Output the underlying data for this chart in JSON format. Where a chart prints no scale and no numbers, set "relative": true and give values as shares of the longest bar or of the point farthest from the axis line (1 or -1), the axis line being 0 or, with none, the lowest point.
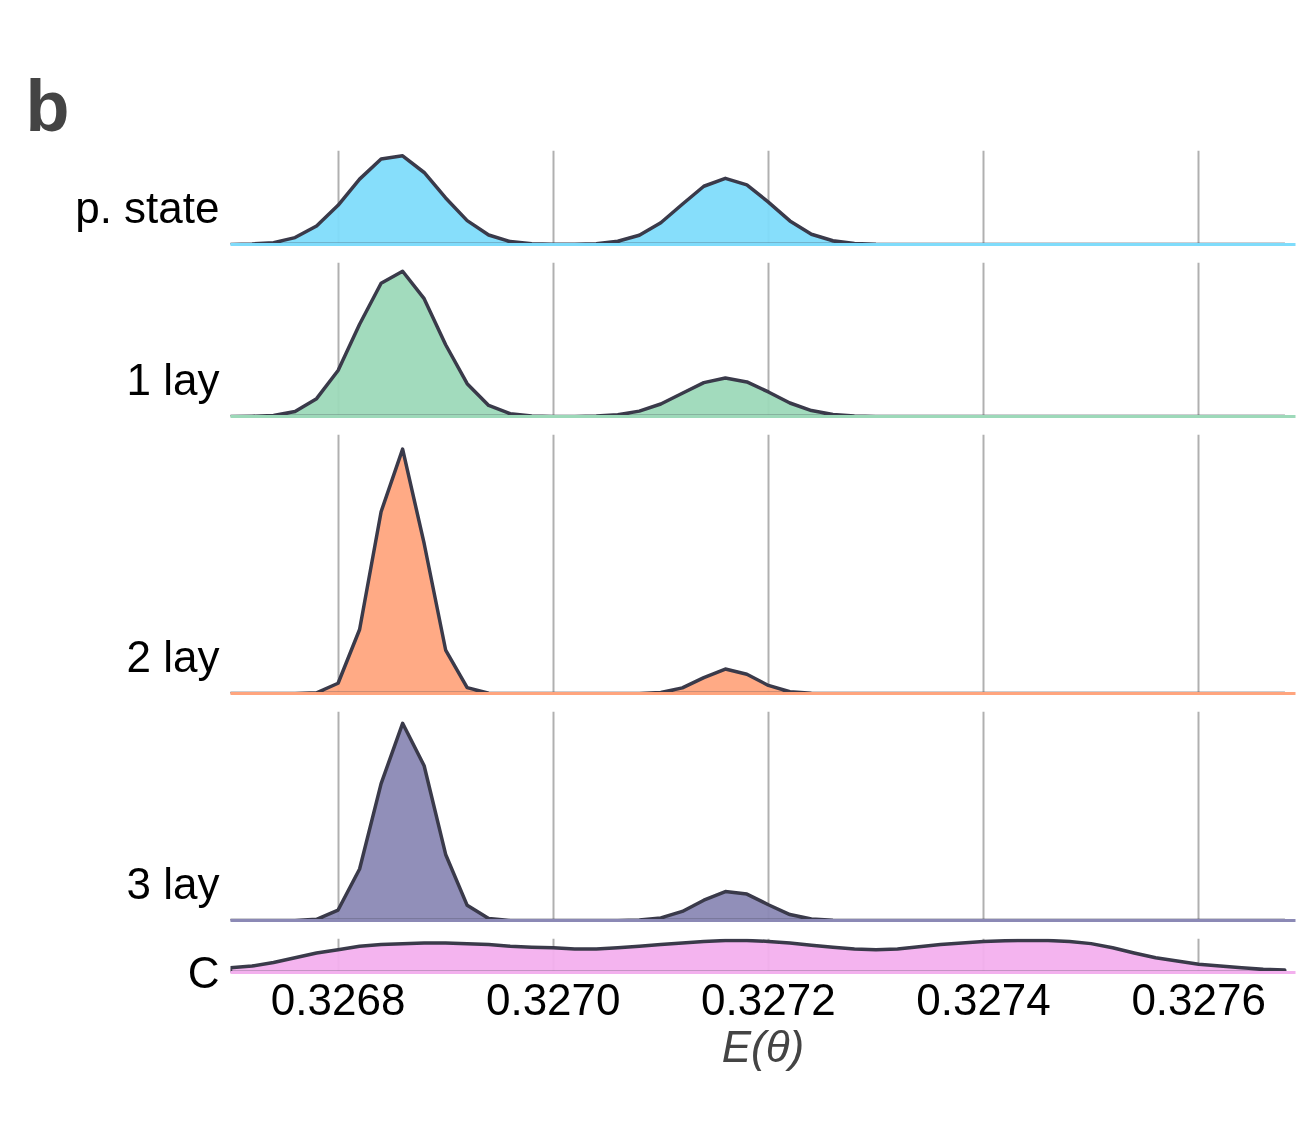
{
  "chart_data": [
    {
      "type": "area",
      "relative": true,
      "annotations": [
        "b"
      ],
      "grid": "x",
      "tick_labels": false,
      "xlim": [
        0.3267,
        0.32769
      ],
      "x": [
        0.3267,
        0.32672,
        0.32674,
        0.32676,
        0.32678,
        0.3268,
        0.32682,
        0.32684,
        0.32686,
        0.32688,
        0.3269,
        0.32692,
        0.32694,
        0.32696,
        0.32698,
        0.327,
        0.32702,
        0.32704,
        0.32706,
        0.32708,
        0.3271,
        0.32712,
        0.32714,
        0.32716,
        0.32718,
        0.3272,
        0.32722,
        0.32724,
        0.32726,
        0.32728,
        0.3273,
        0.32732,
        0.32734,
        0.32736,
        0.32738,
        0.3274,
        0.32742,
        0.32744,
        0.32746,
        0.32748,
        0.3275,
        0.32752,
        0.32754,
        0.32756,
        0.32758,
        0.3276,
        0.32762,
        0.32764,
        0.32766,
        0.32768
      ],
      "series": [
        {
          "name": "p. state",
          "color": "#7fdcfb",
          "values": [
            0,
            0.006,
            0.021,
            0.078,
            0.209,
            0.442,
            0.737,
            0.964,
            1,
            0.812,
            0.525,
            0.269,
            0.107,
            0.033,
            0.009,
            0.003,
            0.003,
            0.009,
            0.036,
            0.104,
            0.245,
            0.454,
            0.657,
            0.746,
            0.672,
            0.478,
            0.266,
            0.116,
            0.042,
            0.012,
            0.003,
            0,
            0,
            0,
            0,
            0,
            0,
            0,
            0,
            0,
            0,
            0,
            0,
            0,
            0,
            0,
            0,
            0,
            0,
            0
          ]
        }
      ]
    },
    {
      "type": "area",
      "relative": true,
      "grid": "x",
      "tick_labels": false,
      "xlim": [
        0.3267,
        0.32769
      ],
      "x": [
        0.3267,
        0.32672,
        0.32674,
        0.32676,
        0.32678,
        0.3268,
        0.32682,
        0.32684,
        0.32686,
        0.32688,
        0.3269,
        0.32692,
        0.32694,
        0.32696,
        0.32698,
        0.327,
        0.32702,
        0.32704,
        0.32706,
        0.32708,
        0.3271,
        0.32712,
        0.32714,
        0.32716,
        0.32718,
        0.3272,
        0.32722,
        0.32724,
        0.32726,
        0.32728,
        0.3273,
        0.32732,
        0.32734,
        0.32736,
        0.32738,
        0.3274,
        0.32742,
        0.32744,
        0.32746,
        0.32748,
        0.3275,
        0.32752,
        0.32754,
        0.32756,
        0.32758,
        0.3276,
        0.32762,
        0.32764,
        0.32766,
        0.32768
      ],
      "series": [
        {
          "name": "1 lay",
          "color": "#9dd9b9",
          "values": [
            0,
            0.002,
            0.007,
            0.035,
            0.123,
            0.317,
            0.635,
            0.917,
            1,
            0.811,
            0.494,
            0.226,
            0.076,
            0.019,
            0.004,
            0,
            0,
            0.004,
            0.012,
            0.037,
            0.086,
            0.16,
            0.233,
            0.265,
            0.238,
            0.169,
            0.093,
            0.041,
            0.014,
            0.004,
            0,
            0,
            0,
            0,
            0,
            0,
            0,
            0,
            0,
            0,
            0,
            0,
            0,
            0,
            0,
            0,
            0,
            0,
            0,
            0
          ]
        }
      ]
    },
    {
      "type": "area",
      "relative": true,
      "grid": "x",
      "tick_labels": false,
      "xlim": [
        0.3267,
        0.32769
      ],
      "x": [
        0.3267,
        0.32672,
        0.32674,
        0.32676,
        0.32678,
        0.3268,
        0.32682,
        0.32684,
        0.32686,
        0.32688,
        0.3269,
        0.32692,
        0.32694,
        0.32696,
        0.32698,
        0.327,
        0.32702,
        0.32704,
        0.32706,
        0.32708,
        0.3271,
        0.32712,
        0.32714,
        0.32716,
        0.32718,
        0.3272,
        0.32722,
        0.32724,
        0.32726,
        0.32728,
        0.3273,
        0.32732,
        0.32734,
        0.32736,
        0.32738,
        0.3274,
        0.32742,
        0.32744,
        0.32746,
        0.32748,
        0.3275,
        0.32752,
        0.32754,
        0.32756,
        0.32758,
        0.3276,
        0.32762,
        0.32764,
        0.32766,
        0.32768
      ],
      "series": [
        {
          "name": "2 lay",
          "color": "#ffa57e",
          "values": [
            0,
            0,
            0,
            0,
            0.003,
            0.042,
            0.262,
            0.744,
            1,
            0.614,
            0.178,
            0.024,
            0.001,
            0,
            0,
            0,
            0,
            0,
            0,
            0,
            0.004,
            0.023,
            0.065,
            0.1,
            0.079,
            0.033,
            0.007,
            0.001,
            0,
            0,
            0,
            0,
            0,
            0,
            0,
            0,
            0,
            0,
            0,
            0,
            0,
            0,
            0,
            0,
            0,
            0,
            0,
            0,
            0,
            0
          ]
        }
      ]
    },
    {
      "type": "area",
      "relative": true,
      "grid": "x",
      "tick_labels": false,
      "xlim": [
        0.3267,
        0.32769
      ],
      "x": [
        0.3267,
        0.32672,
        0.32674,
        0.32676,
        0.32678,
        0.3268,
        0.32682,
        0.32684,
        0.32686,
        0.32688,
        0.3269,
        0.32692,
        0.32694,
        0.32696,
        0.32698,
        0.327,
        0.32702,
        0.32704,
        0.32706,
        0.32708,
        0.3271,
        0.32712,
        0.32714,
        0.32716,
        0.32718,
        0.3272,
        0.32722,
        0.32724,
        0.32726,
        0.32728,
        0.3273,
        0.32732,
        0.32734,
        0.32736,
        0.32738,
        0.3274,
        0.32742,
        0.32744,
        0.32746,
        0.32748,
        0.3275,
        0.32752,
        0.32754,
        0.32756,
        0.32758,
        0.3276,
        0.32762,
        0.32764,
        0.32766,
        0.32768
      ],
      "series": [
        {
          "name": "3 lay",
          "color": "#8b89b5",
          "values": [
            0,
            0,
            0,
            0,
            0.006,
            0.053,
            0.261,
            0.694,
            1,
            0.785,
            0.335,
            0.077,
            0.01,
            0,
            0,
            0,
            0,
            0,
            0,
            0.003,
            0.013,
            0.046,
            0.103,
            0.147,
            0.134,
            0.08,
            0.03,
            0.008,
            0.001,
            0,
            0,
            0,
            0,
            0,
            0,
            0,
            0,
            0,
            0,
            0,
            0,
            0,
            0,
            0,
            0,
            0,
            0,
            0,
            0,
            0
          ]
        }
      ]
    },
    {
      "type": "area",
      "relative": true,
      "grid": "x",
      "tick_labels": "x",
      "xlabel": "E(θ)",
      "xlim": [
        0.3267,
        0.32769
      ],
      "xticks": [
        0.3268,
        {
          "value": 0.327,
          "label": "0.3270"
        },
        0.3272,
        0.3274,
        0.3276
      ],
      "x": [
        0.3267,
        0.32672,
        0.32674,
        0.32676,
        0.32678,
        0.3268,
        0.32682,
        0.32684,
        0.32686,
        0.32688,
        0.3269,
        0.32692,
        0.32694,
        0.32696,
        0.32698,
        0.327,
        0.32702,
        0.32704,
        0.32706,
        0.32708,
        0.3271,
        0.32712,
        0.32714,
        0.32716,
        0.32718,
        0.3272,
        0.32722,
        0.32724,
        0.32726,
        0.32728,
        0.3273,
        0.32732,
        0.32734,
        0.32736,
        0.32738,
        0.3274,
        0.32742,
        0.32744,
        0.32746,
        0.32748,
        0.3275,
        0.32752,
        0.32754,
        0.32756,
        0.32758,
        0.3276,
        0.32762,
        0.32764,
        0.32766,
        0.32768
      ],
      "series": [
        {
          "name": "C",
          "color": "#f3b0ee",
          "values": [
            0.15,
            0.2,
            0.31,
            0.46,
            0.61,
            0.71,
            0.82,
            0.87,
            0.9,
            0.92,
            0.92,
            0.9,
            0.87,
            0.82,
            0.79,
            0.77,
            0.73,
            0.73,
            0.77,
            0.82,
            0.87,
            0.92,
            0.97,
            1,
            1,
            0.97,
            0.92,
            0.85,
            0.79,
            0.73,
            0.71,
            0.73,
            0.8,
            0.87,
            0.92,
            0.97,
            0.99,
            1,
            1,
            0.97,
            0.9,
            0.77,
            0.61,
            0.46,
            0.36,
            0.26,
            0.2,
            0.15,
            0.1,
            0.08
          ]
        }
      ]
    }
  ]
}
